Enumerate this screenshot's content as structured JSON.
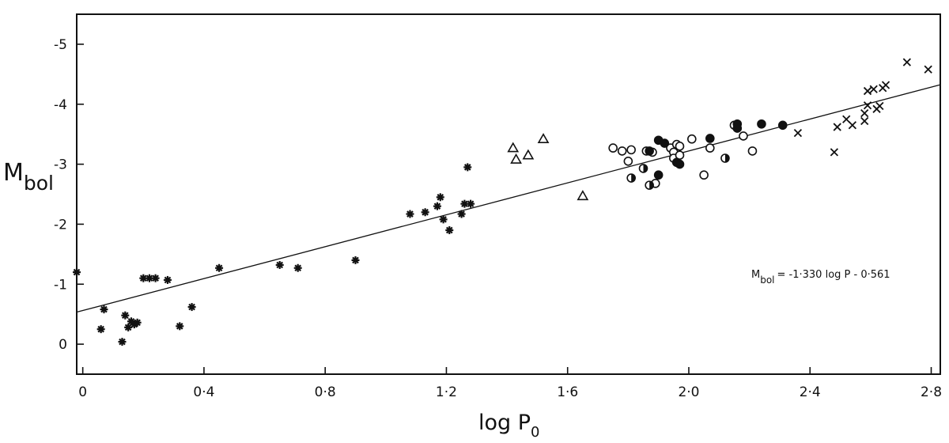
{
  "chart_data": {
    "type": "scatter",
    "title": "",
    "xlabel_main": "log P",
    "xlabel_sub": "0",
    "ylabel_main": "M",
    "ylabel_sub": "bol",
    "xlim": [
      -0.02,
      2.83
    ],
    "ylim": [
      0.5,
      -5.5
    ],
    "x_ticks": [
      {
        "value": 0,
        "label": "0"
      },
      {
        "value": 0.4,
        "label": "0·4"
      },
      {
        "value": 0.8,
        "label": "0·8"
      },
      {
        "value": 1.2,
        "label": "1·2"
      },
      {
        "value": 1.6,
        "label": "1·6"
      },
      {
        "value": 2.0,
        "label": "2·0"
      },
      {
        "value": 2.4,
        "label": "2·4"
      },
      {
        "value": 2.8,
        "label": "2·8"
      }
    ],
    "y_ticks": [
      {
        "value": -5,
        "label": "-5"
      },
      {
        "value": -4,
        "label": "-4"
      },
      {
        "value": -3,
        "label": "-3"
      },
      {
        "value": -2,
        "label": "-2"
      },
      {
        "value": -1,
        "label": "-1"
      },
      {
        "value": 0,
        "label": "0"
      }
    ],
    "fit_line": {
      "slope": -1.33,
      "intercept": -0.561,
      "x_range": [
        -0.02,
        2.83
      ]
    },
    "annotation": {
      "m_main": "M",
      "m_sub": "bol",
      "rest": "= -1·330 log P - 0·561"
    },
    "series": [
      {
        "marker": "asterisk",
        "points": [
          [
            -0.02,
            -1.2
          ],
          [
            0.06,
            -0.25
          ],
          [
            0.07,
            -0.58
          ],
          [
            0.13,
            -0.04
          ],
          [
            0.14,
            -0.48
          ],
          [
            0.15,
            -0.28
          ],
          [
            0.16,
            -0.38
          ],
          [
            0.17,
            -0.33
          ],
          [
            0.18,
            -0.36
          ],
          [
            0.2,
            -1.1
          ],
          [
            0.22,
            -1.1
          ],
          [
            0.24,
            -1.1
          ],
          [
            0.28,
            -1.07
          ],
          [
            0.32,
            -0.3
          ],
          [
            0.36,
            -0.62
          ],
          [
            0.45,
            -1.27
          ],
          [
            0.65,
            -1.32
          ],
          [
            0.71,
            -1.27
          ],
          [
            0.9,
            -1.4
          ],
          [
            1.08,
            -2.17
          ],
          [
            1.13,
            -2.2
          ],
          [
            1.17,
            -2.3
          ],
          [
            1.18,
            -2.45
          ],
          [
            1.19,
            -2.08
          ],
          [
            1.21,
            -1.9
          ],
          [
            1.25,
            -2.17
          ],
          [
            1.26,
            -2.34
          ],
          [
            1.27,
            -2.95
          ],
          [
            1.28,
            -2.34
          ]
        ]
      },
      {
        "marker": "triangle",
        "points": [
          [
            1.42,
            -3.27
          ],
          [
            1.43,
            -3.08
          ],
          [
            1.47,
            -3.15
          ],
          [
            1.52,
            -3.42
          ],
          [
            1.65,
            -2.47
          ]
        ]
      },
      {
        "marker": "open-circle",
        "points": [
          [
            1.75,
            -3.27
          ],
          [
            1.78,
            -3.22
          ],
          [
            1.8,
            -3.05
          ],
          [
            1.81,
            -3.24
          ],
          [
            1.86,
            -3.22
          ],
          [
            1.88,
            -3.2
          ],
          [
            1.89,
            -2.68
          ],
          [
            1.94,
            -3.27
          ],
          [
            1.95,
            -3.2
          ],
          [
            1.95,
            -3.1
          ],
          [
            1.96,
            -3.33
          ],
          [
            1.97,
            -3.15
          ],
          [
            1.97,
            -3.3
          ],
          [
            2.01,
            -3.42
          ],
          [
            2.05,
            -2.82
          ],
          [
            2.07,
            -3.27
          ],
          [
            2.15,
            -3.65
          ],
          [
            2.18,
            -3.47
          ],
          [
            2.21,
            -3.22
          ]
        ]
      },
      {
        "marker": "filled-circle",
        "points": [
          [
            1.87,
            -3.22
          ],
          [
            1.9,
            -3.4
          ],
          [
            1.9,
            -2.82
          ],
          [
            1.92,
            -3.35
          ],
          [
            1.96,
            -3.03
          ],
          [
            1.97,
            -3.0
          ],
          [
            2.07,
            -3.43
          ],
          [
            2.16,
            -3.67
          ],
          [
            2.16,
            -3.6
          ],
          [
            2.24,
            -3.67
          ],
          [
            2.31,
            -3.65
          ]
        ]
      },
      {
        "marker": "half-circle",
        "points": [
          [
            1.81,
            -2.77
          ],
          [
            1.85,
            -2.93
          ],
          [
            1.87,
            -2.65
          ],
          [
            2.12,
            -3.1
          ]
        ]
      },
      {
        "marker": "cross",
        "points": [
          [
            2.36,
            -3.52
          ],
          [
            2.48,
            -3.2
          ],
          [
            2.49,
            -3.62
          ],
          [
            2.52,
            -3.75
          ],
          [
            2.54,
            -3.65
          ],
          [
            2.58,
            -3.72
          ],
          [
            2.58,
            -3.85
          ],
          [
            2.59,
            -4.22
          ],
          [
            2.59,
            -3.98
          ],
          [
            2.61,
            -4.25
          ],
          [
            2.62,
            -3.92
          ],
          [
            2.63,
            -3.97
          ],
          [
            2.64,
            -4.27
          ],
          [
            2.65,
            -4.32
          ],
          [
            2.72,
            -4.7
          ],
          [
            2.79,
            -4.58
          ]
        ]
      }
    ]
  }
}
